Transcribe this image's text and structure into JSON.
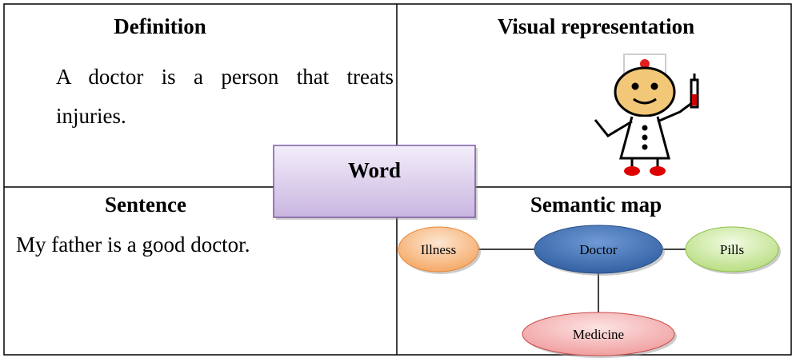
{
  "definition": {
    "heading": "Definition",
    "text": "A doctor is a person that treats injuries."
  },
  "visual": {
    "heading": "Visual representation"
  },
  "word": "Word",
  "sentence": {
    "heading": "Sentence",
    "text": "My father is a good doctor."
  },
  "semantic_map": {
    "heading": "Semantic map",
    "nodes": [
      {
        "label": "Illness"
      },
      {
        "label": "Doctor"
      },
      {
        "label": "Pills"
      },
      {
        "label": "Medicine"
      }
    ]
  }
}
